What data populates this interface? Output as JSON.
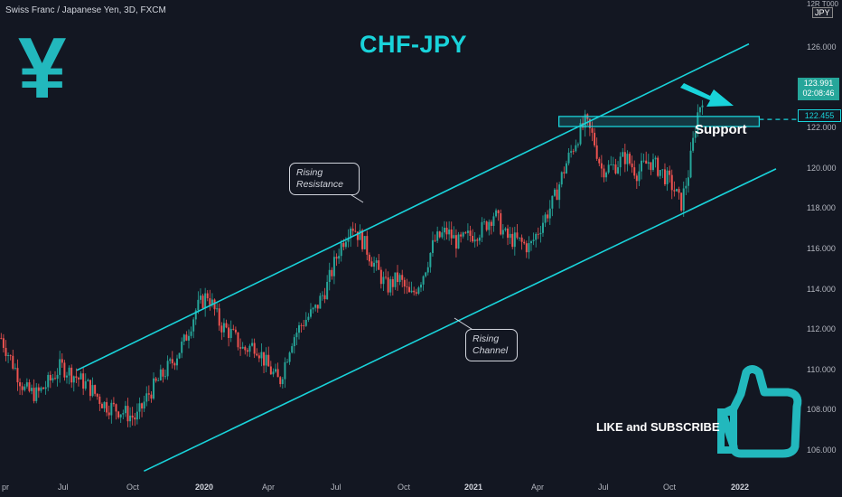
{
  "header": {
    "symbol_label": "Swiss Franc / Japanese Yen, 3D, FXCM"
  },
  "annotations": {
    "title": "CHF-JPY",
    "yen_symbol": "¥",
    "support": "Support",
    "like_subscribe": "LIKE and SUBSCRIBE",
    "rising_resistance_l1": "Rising",
    "rising_resistance_l2": "Resistance",
    "rising_channel_l1": "Rising",
    "rising_channel_l2": "Channel"
  },
  "axis": {
    "top_small": "12R T000",
    "currency": "JPY",
    "y_ticks": [
      "126.000",
      "122.000",
      "120.000",
      "118.000",
      "116.000",
      "114.000",
      "112.000",
      "110.000",
      "108.000",
      "106.000"
    ],
    "y_tick_values": [
      126,
      122,
      120,
      118,
      116,
      114,
      112,
      110,
      108,
      106
    ],
    "x_ticks": [
      {
        "label": "pr",
        "bold": false
      },
      {
        "label": "Jul",
        "bold": false
      },
      {
        "label": "Oct",
        "bold": false
      },
      {
        "label": "2020",
        "bold": true
      },
      {
        "label": "Apr",
        "bold": false
      },
      {
        "label": "Jul",
        "bold": false
      },
      {
        "label": "Oct",
        "bold": false
      },
      {
        "label": "2021",
        "bold": true
      },
      {
        "label": "Apr",
        "bold": false
      },
      {
        "label": "Jul",
        "bold": false
      },
      {
        "label": "Oct",
        "bold": false
      },
      {
        "label": "2022",
        "bold": true
      }
    ]
  },
  "price_tag": {
    "price": "123.991",
    "countdown": "02:08:46"
  },
  "level_tag": {
    "price": "122.455"
  },
  "colors": {
    "background": "#131722",
    "up": "#26a69a",
    "down": "#ef5350",
    "channel": "#19d3da",
    "title": "#19d3da"
  },
  "chart_data": {
    "type": "candlestick",
    "title": "CHF-JPY",
    "ylim": [
      104.7,
      128.2
    ],
    "x_range": [
      "2019-04",
      "2022-01"
    ],
    "price_points": [
      {
        "x": 0.0,
        "y": 111.6
      },
      {
        "x": 0.015,
        "y": 110.3
      },
      {
        "x": 0.03,
        "y": 109.0
      },
      {
        "x": 0.045,
        "y": 108.8
      },
      {
        "x": 0.06,
        "y": 109.4
      },
      {
        "x": 0.075,
        "y": 110.2
      },
      {
        "x": 0.09,
        "y": 109.8
      },
      {
        "x": 0.11,
        "y": 109.2
      },
      {
        "x": 0.13,
        "y": 108.3
      },
      {
        "x": 0.15,
        "y": 108.0
      },
      {
        "x": 0.17,
        "y": 107.6
      },
      {
        "x": 0.185,
        "y": 108.8
      },
      {
        "x": 0.2,
        "y": 109.6
      },
      {
        "x": 0.215,
        "y": 110.4
      },
      {
        "x": 0.23,
        "y": 111.4
      },
      {
        "x": 0.245,
        "y": 113.0
      },
      {
        "x": 0.26,
        "y": 113.8
      },
      {
        "x": 0.275,
        "y": 112.3
      },
      {
        "x": 0.29,
        "y": 111.8
      },
      {
        "x": 0.305,
        "y": 111.0
      },
      {
        "x": 0.32,
        "y": 111.3
      },
      {
        "x": 0.335,
        "y": 110.2
      },
      {
        "x": 0.35,
        "y": 109.4
      },
      {
        "x": 0.365,
        "y": 111.5
      },
      {
        "x": 0.38,
        "y": 112.4
      },
      {
        "x": 0.395,
        "y": 113.0
      },
      {
        "x": 0.41,
        "y": 114.2
      },
      {
        "x": 0.425,
        "y": 116.0
      },
      {
        "x": 0.44,
        "y": 117.3
      },
      {
        "x": 0.455,
        "y": 116.4
      },
      {
        "x": 0.47,
        "y": 115.2
      },
      {
        "x": 0.485,
        "y": 114.1
      },
      {
        "x": 0.5,
        "y": 114.6
      },
      {
        "x": 0.515,
        "y": 113.6
      },
      {
        "x": 0.53,
        "y": 114.7
      },
      {
        "x": 0.545,
        "y": 116.4
      },
      {
        "x": 0.56,
        "y": 116.9
      },
      {
        "x": 0.575,
        "y": 116.3
      },
      {
        "x": 0.59,
        "y": 116.7
      },
      {
        "x": 0.605,
        "y": 117.0
      },
      {
        "x": 0.62,
        "y": 117.8
      },
      {
        "x": 0.635,
        "y": 116.6
      },
      {
        "x": 0.65,
        "y": 116.4
      },
      {
        "x": 0.665,
        "y": 116.1
      },
      {
        "x": 0.68,
        "y": 117.3
      },
      {
        "x": 0.695,
        "y": 118.4
      },
      {
        "x": 0.71,
        "y": 120.2
      },
      {
        "x": 0.725,
        "y": 121.6
      },
      {
        "x": 0.735,
        "y": 122.3
      },
      {
        "x": 0.745,
        "y": 121.5
      },
      {
        "x": 0.755,
        "y": 120.0
      },
      {
        "x": 0.77,
        "y": 120.1
      },
      {
        "x": 0.785,
        "y": 120.6
      },
      {
        "x": 0.8,
        "y": 119.8
      },
      {
        "x": 0.815,
        "y": 120.4
      },
      {
        "x": 0.83,
        "y": 119.9
      },
      {
        "x": 0.845,
        "y": 119.1
      },
      {
        "x": 0.855,
        "y": 118.2
      },
      {
        "x": 0.865,
        "y": 119.9
      },
      {
        "x": 0.875,
        "y": 122.6
      },
      {
        "x": 0.885,
        "y": 124.0
      }
    ],
    "channel_upper": [
      {
        "x": "2019-07",
        "y": 110.0
      },
      {
        "x": "2022-01",
        "y": 126.2
      }
    ],
    "channel_lower": [
      {
        "x": "2019-10",
        "y": 105.0
      },
      {
        "x": "2022-01",
        "y": 120.0
      }
    ],
    "support_zone": {
      "y_low": 122.1,
      "y_high": 122.6
    },
    "support_level": 122.455,
    "last_price": 123.991
  }
}
